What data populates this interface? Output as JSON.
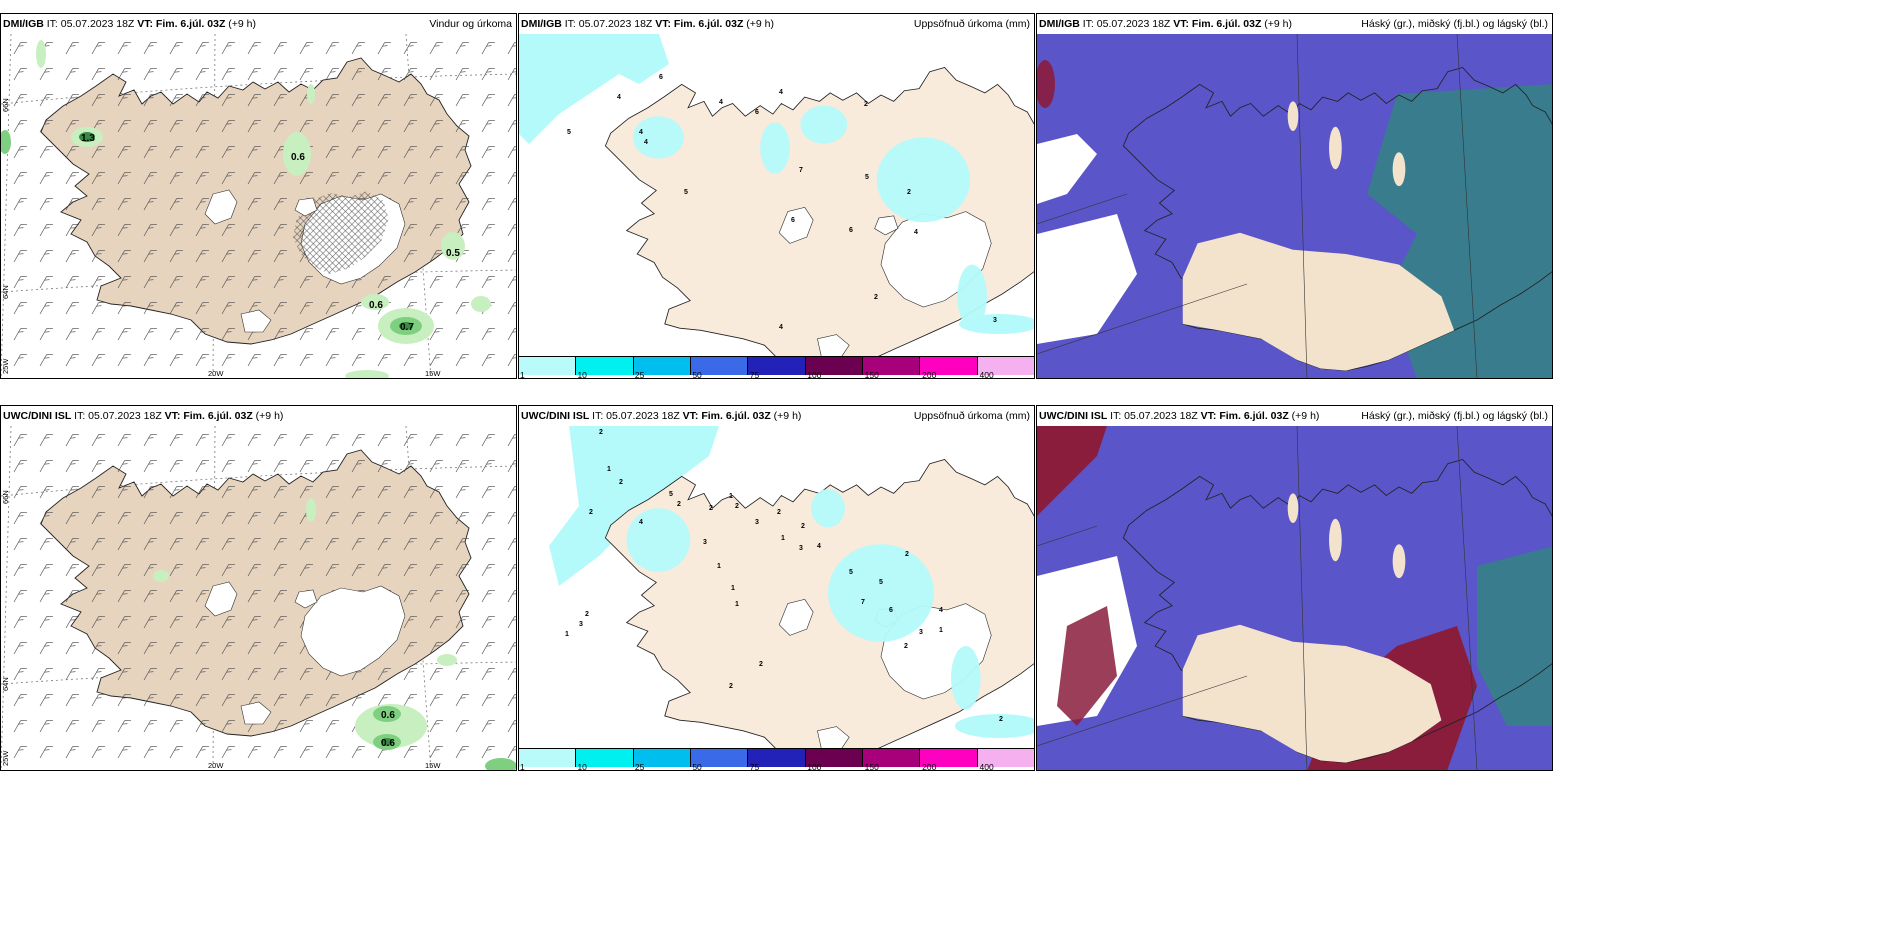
{
  "panels": {
    "p1": {
      "model": "DMI/IGB",
      "it": " IT: 05.07.2023 18Z ",
      "vt": "VT: Fim. 6.júl. 03Z",
      "step": " (+9 h)",
      "title": "Vindur og úrkoma"
    },
    "p2": {
      "model": "DMI/IGB",
      "it": " IT: 05.07.2023 18Z ",
      "vt": "VT: Fim. 6.júl. 03Z",
      "step": " (+9 h)",
      "title": "Uppsöfnuð úrkoma (mm)"
    },
    "p3": {
      "model": "DMI/IGB",
      "it": " IT: 05.07.2023 18Z ",
      "vt": "VT: Fim. 6.júl. 03Z",
      "step": " (+9 h)",
      "title": "Háský (gr.), miðský (fj.bl.) og lágský (bl.)"
    },
    "p4": {
      "model": "UWC/DINI ISL",
      "it": " IT: 05.07.2023 18Z ",
      "vt": "VT: Fim. 6.júl. 03Z",
      "step": " (+9 h)",
      "title": ""
    },
    "p5": {
      "model": "UWC/DINI ISL",
      "it": " IT: 05.07.2023 18Z ",
      "vt": "VT: Fim. 6.júl. 03Z",
      "step": " (+9 h)",
      "title": "Uppsöfnuð úrkoma (mm)"
    },
    "p6": {
      "model": "UWC/DINI ISL",
      "it": " IT: 05.07.2023 18Z ",
      "vt": "VT: Fim. 6.júl. 03Z",
      "step": " (+9 h)",
      "title": "Háský (gr.), miðský (fj.bl.) og lágský (bl.)"
    }
  },
  "axes": {
    "lon_20": "20W",
    "lon_15": "15W",
    "lon_25": "25W",
    "lat_66": "66N",
    "lat_64": "64N"
  },
  "precip_labels_top": {
    "a": "1.3",
    "b": "0.6",
    "c": "0.5",
    "d": "0.6",
    "e": "0.7"
  },
  "precip_labels_bottom": {
    "a": "0.6",
    "b": "0.6"
  },
  "colorbar": {
    "colors": [
      "#b9fbfb",
      "#00f0f0",
      "#00bfef",
      "#3a6ae8",
      "#2222b8",
      "#6b0050",
      "#a8007a",
      "#ff00c0",
      "#f5b0f0"
    ],
    "ticks": [
      "1",
      "10",
      "25",
      "50",
      "75",
      "100",
      "150",
      "200",
      "400"
    ]
  },
  "accum_labels_top": [
    "6",
    "4",
    "4",
    "5",
    "4",
    "5",
    "4",
    "6",
    "4",
    "2",
    "7",
    "5",
    "2",
    "6",
    "6",
    "4",
    "4",
    "2",
    "3"
  ],
  "accum_labels_bottom": [
    "2",
    "1",
    "2",
    "2",
    "4",
    "3",
    "5",
    "2",
    "2",
    "1",
    "1",
    "2",
    "3",
    "2",
    "2",
    "3",
    "1",
    "4",
    "5",
    "2",
    "5",
    "7",
    "4",
    "6",
    "1",
    "3",
    "2",
    "1",
    "1",
    "2",
    "3",
    "2",
    "1",
    "2",
    "2"
  ],
  "colors": {
    "land": "#f3e3cc",
    "land_panel1": "#e7d4bf",
    "light_green": "#c8efc0",
    "mid_green": "#7fcf80",
    "dark_green": "#3a8a44",
    "cyan_precip": "#b4fafa",
    "cloud_blue": "#5a55c8",
    "cloud_red": "#8a1c3c",
    "cloud_teal": "#2e8a7a"
  }
}
